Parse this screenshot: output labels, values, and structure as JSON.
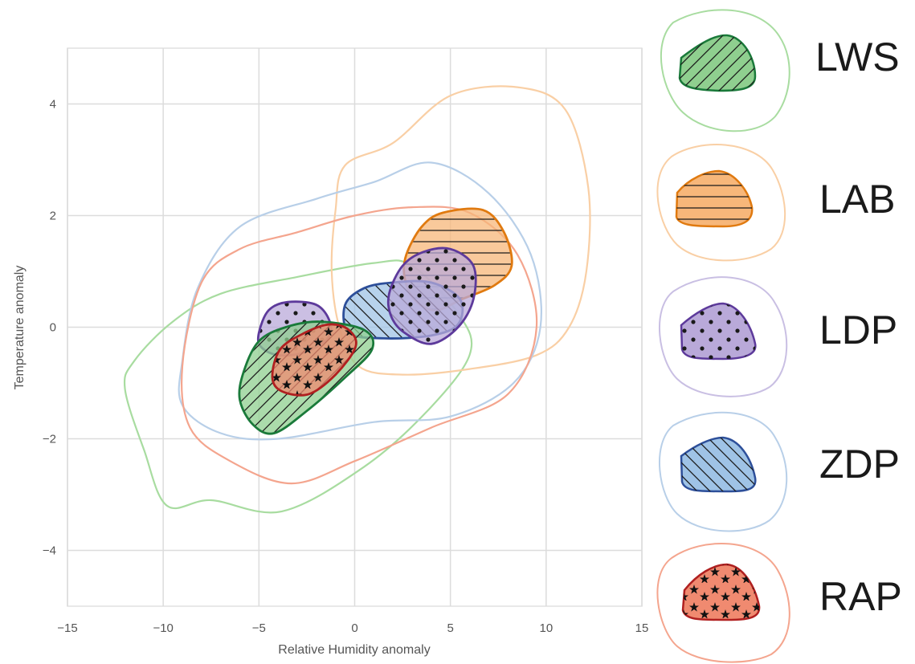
{
  "chart_data": {
    "type": "density-contour",
    "title": "",
    "xlabel": "Relative Humidity anomaly",
    "ylabel": "Temperature anomaly",
    "xlim": [
      -15,
      15
    ],
    "ylim": [
      -5,
      5
    ],
    "xticks": [
      -15,
      -10,
      -5,
      0,
      5,
      10,
      15
    ],
    "yticks": [
      -4,
      -2,
      0,
      2,
      4
    ],
    "xtick_labels": [
      "−15",
      "−10",
      "−5",
      "0",
      "5",
      "10",
      "15"
    ],
    "ytick_labels": [
      "−4",
      "−2",
      "0",
      "2",
      "4"
    ],
    "grid": true,
    "legend_position": "right",
    "series": [
      {
        "name": "LWS",
        "edge_color": "#1a7a3a",
        "fill_color": "#8fcf8f",
        "outer_color": "#a8dca0",
        "hatch": "diagonal",
        "outer_contour": [
          [
            -12,
            -1.1
          ],
          [
            -11.5,
            -0.6
          ],
          [
            -9.5,
            0.1
          ],
          [
            -7,
            0.6
          ],
          [
            -3,
            0.9
          ],
          [
            1,
            1.15
          ],
          [
            3,
            1.1
          ],
          [
            5.5,
            0.2
          ],
          [
            6,
            -0.5
          ],
          [
            3.8,
            -1.5
          ],
          [
            0.5,
            -2.5
          ],
          [
            -3.8,
            -3.3
          ],
          [
            -7.5,
            -3.1
          ],
          [
            -9.8,
            -3.2
          ],
          [
            -11,
            -2.2
          ]
        ],
        "inner_contour": [
          [
            -5.8,
            -0.8
          ],
          [
            -5,
            -0.25
          ],
          [
            -3.6,
            0
          ],
          [
            -1.8,
            0.1
          ],
          [
            0.5,
            -0.05
          ],
          [
            0.9,
            -0.4
          ],
          [
            -0.5,
            -0.9
          ],
          [
            -2.5,
            -1.5
          ],
          [
            -4.2,
            -1.9
          ],
          [
            -5.3,
            -1.75
          ],
          [
            -6,
            -1.3
          ]
        ]
      },
      {
        "name": "LAB",
        "edge_color": "#e07a10",
        "fill_color": "#f7b77a",
        "outer_color": "#f9cfa5",
        "hatch": "horizontal",
        "outer_contour": [
          [
            -1,
            2.1
          ],
          [
            -0.5,
            2.9
          ],
          [
            2,
            3.3
          ],
          [
            5,
            4.15
          ],
          [
            8.5,
            4.3
          ],
          [
            11,
            3.9
          ],
          [
            12.2,
            2.5
          ],
          [
            12.1,
            1.0
          ],
          [
            11.2,
            0
          ],
          [
            9.5,
            -0.5
          ],
          [
            6,
            -0.75
          ],
          [
            2.5,
            -0.85
          ],
          [
            0.2,
            -0.7
          ],
          [
            -0.8,
            0
          ],
          [
            -1.2,
            1.0
          ]
        ],
        "inner_contour": [
          [
            2.7,
            1.3
          ],
          [
            3.5,
            1.8
          ],
          [
            4.6,
            2.05
          ],
          [
            6.7,
            2.1
          ],
          [
            7.8,
            1.7
          ],
          [
            8.2,
            1.1
          ],
          [
            7.3,
            0.75
          ],
          [
            5.6,
            0.5
          ],
          [
            4.2,
            0.3
          ],
          [
            3.1,
            0.5
          ],
          [
            2.6,
            0.9
          ]
        ]
      },
      {
        "name": "LDP",
        "edge_color": "#5d3a9b",
        "fill_color": "#b9a9d9",
        "outer_color": "#c9bfe3",
        "hatch": "dots",
        "inner_contour_1": [
          [
            -5,
            -0.1
          ],
          [
            -4.5,
            0.3
          ],
          [
            -3.5,
            0.45
          ],
          [
            -2,
            0.4
          ],
          [
            -1.3,
            0.1
          ],
          [
            -1.4,
            -0.2
          ],
          [
            -2.6,
            -0.45
          ],
          [
            -4,
            -0.5
          ],
          [
            -4.9,
            -0.35
          ]
        ],
        "inner_contour_2": [
          [
            1.8,
            0.6
          ],
          [
            2.5,
            1.1
          ],
          [
            3.6,
            1.35
          ],
          [
            5,
            1.4
          ],
          [
            6.2,
            1.1
          ],
          [
            6.2,
            0.5
          ],
          [
            5.4,
            0
          ],
          [
            4,
            -0.3
          ],
          [
            2.6,
            -0.1
          ],
          [
            1.9,
            0.2
          ]
        ]
      },
      {
        "name": "ZDP",
        "edge_color": "#2d4f9a",
        "fill_color": "#9fc3e6",
        "outer_color": "#b8cfe8",
        "hatch": "diagonal-back",
        "outer_contour": [
          [
            -9,
            -0.6
          ],
          [
            -8.2,
            0.7
          ],
          [
            -6,
            1.8
          ],
          [
            -2,
            2.3
          ],
          [
            1,
            2.6
          ],
          [
            4,
            2.95
          ],
          [
            7,
            2.4
          ],
          [
            9.2,
            1.3
          ],
          [
            9.7,
            0
          ],
          [
            8.3,
            -1
          ],
          [
            5,
            -1.6
          ],
          [
            1,
            -1.7
          ],
          [
            -4,
            -2.0
          ],
          [
            -7,
            -1.9
          ],
          [
            -9,
            -1.4
          ]
        ],
        "inner_contour": [
          [
            -0.5,
            0.4
          ],
          [
            0.5,
            0.7
          ],
          [
            2,
            0.8
          ],
          [
            4,
            0.8
          ],
          [
            5.5,
            0.5
          ],
          [
            5.4,
            0.05
          ],
          [
            4,
            -0.15
          ],
          [
            1.5,
            -0.2
          ],
          [
            -0.3,
            -0.1
          ]
        ]
      },
      {
        "name": "RAP",
        "edge_color": "#b02020",
        "fill_color": "#f08a70",
        "outer_color": "#f4a58e",
        "hatch": "stars",
        "outer_contour": [
          [
            -9,
            -0.7
          ],
          [
            -8,
            0.8
          ],
          [
            -6,
            1.4
          ],
          [
            -3,
            1.7
          ],
          [
            0,
            2.0
          ],
          [
            3,
            2.15
          ],
          [
            6,
            2.05
          ],
          [
            8.5,
            1.3
          ],
          [
            9.5,
            0
          ],
          [
            8,
            -1.2
          ],
          [
            4,
            -1.8
          ],
          [
            0,
            -2.4
          ],
          [
            -3.3,
            -2.8
          ],
          [
            -6.5,
            -2.4
          ],
          [
            -8.6,
            -1.8
          ]
        ],
        "inner_contour": [
          [
            -4.3,
            -0.9
          ],
          [
            -3.9,
            -0.4
          ],
          [
            -2.6,
            -0.1
          ],
          [
            -1.3,
            0.05
          ],
          [
            -0.3,
            -0.05
          ],
          [
            0.05,
            -0.35
          ],
          [
            -1,
            -0.85
          ],
          [
            -2.4,
            -1.2
          ],
          [
            -3.8,
            -1.15
          ]
        ]
      }
    ]
  }
}
